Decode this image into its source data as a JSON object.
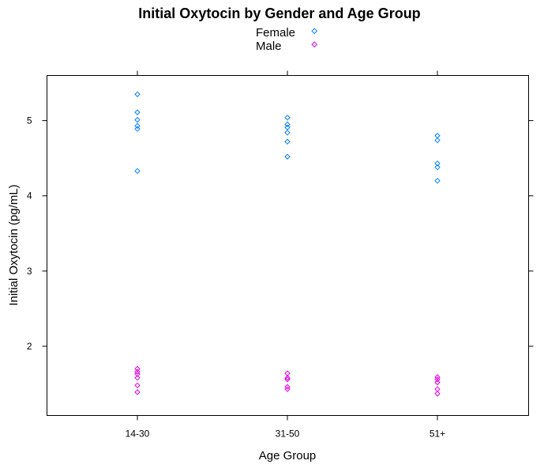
{
  "chart_data": {
    "type": "scatter",
    "title": "Initial Oxytocin by Gender and Age Group",
    "xlabel": "Age Group",
    "ylabel": "Initial Oxytocin (pg/mL)",
    "categories": [
      "14-30",
      "31-50",
      "51+"
    ],
    "yticks": [
      "2",
      "3",
      "4",
      "5"
    ],
    "ylim": [
      1.08,
      5.6
    ],
    "legend_position": "top-center",
    "grid": false,
    "series": [
      {
        "name": "Female",
        "color": "#0080ff",
        "marker": "diamond",
        "points": [
          {
            "x": "14-30",
            "y": 5.35
          },
          {
            "x": "14-30",
            "y": 5.11
          },
          {
            "x": "14-30",
            "y": 5.01
          },
          {
            "x": "14-30",
            "y": 4.93
          },
          {
            "x": "14-30",
            "y": 4.89
          },
          {
            "x": "14-30",
            "y": 4.33
          },
          {
            "x": "31-50",
            "y": 5.04
          },
          {
            "x": "31-50",
            "y": 4.95
          },
          {
            "x": "31-50",
            "y": 4.91
          },
          {
            "x": "31-50",
            "y": 4.84
          },
          {
            "x": "31-50",
            "y": 4.72
          },
          {
            "x": "31-50",
            "y": 4.52
          },
          {
            "x": "51+",
            "y": 4.8
          },
          {
            "x": "51+",
            "y": 4.74
          },
          {
            "x": "51+",
            "y": 4.43
          },
          {
            "x": "51+",
            "y": 4.38
          },
          {
            "x": "51+",
            "y": 4.2
          }
        ]
      },
      {
        "name": "Male",
        "color": "#e000e0",
        "marker": "diamond",
        "points": [
          {
            "x": "14-30",
            "y": 1.7
          },
          {
            "x": "14-30",
            "y": 1.66
          },
          {
            "x": "14-30",
            "y": 1.63
          },
          {
            "x": "14-30",
            "y": 1.58
          },
          {
            "x": "14-30",
            "y": 1.48
          },
          {
            "x": "14-30",
            "y": 1.39
          },
          {
            "x": "31-50",
            "y": 1.64
          },
          {
            "x": "31-50",
            "y": 1.58
          },
          {
            "x": "31-50",
            "y": 1.56
          },
          {
            "x": "31-50",
            "y": 1.46
          },
          {
            "x": "31-50",
            "y": 1.43
          },
          {
            "x": "51+",
            "y": 1.59
          },
          {
            "x": "51+",
            "y": 1.56
          },
          {
            "x": "51+",
            "y": 1.52
          },
          {
            "x": "51+",
            "y": 1.43
          },
          {
            "x": "51+",
            "y": 1.37
          }
        ]
      }
    ]
  }
}
